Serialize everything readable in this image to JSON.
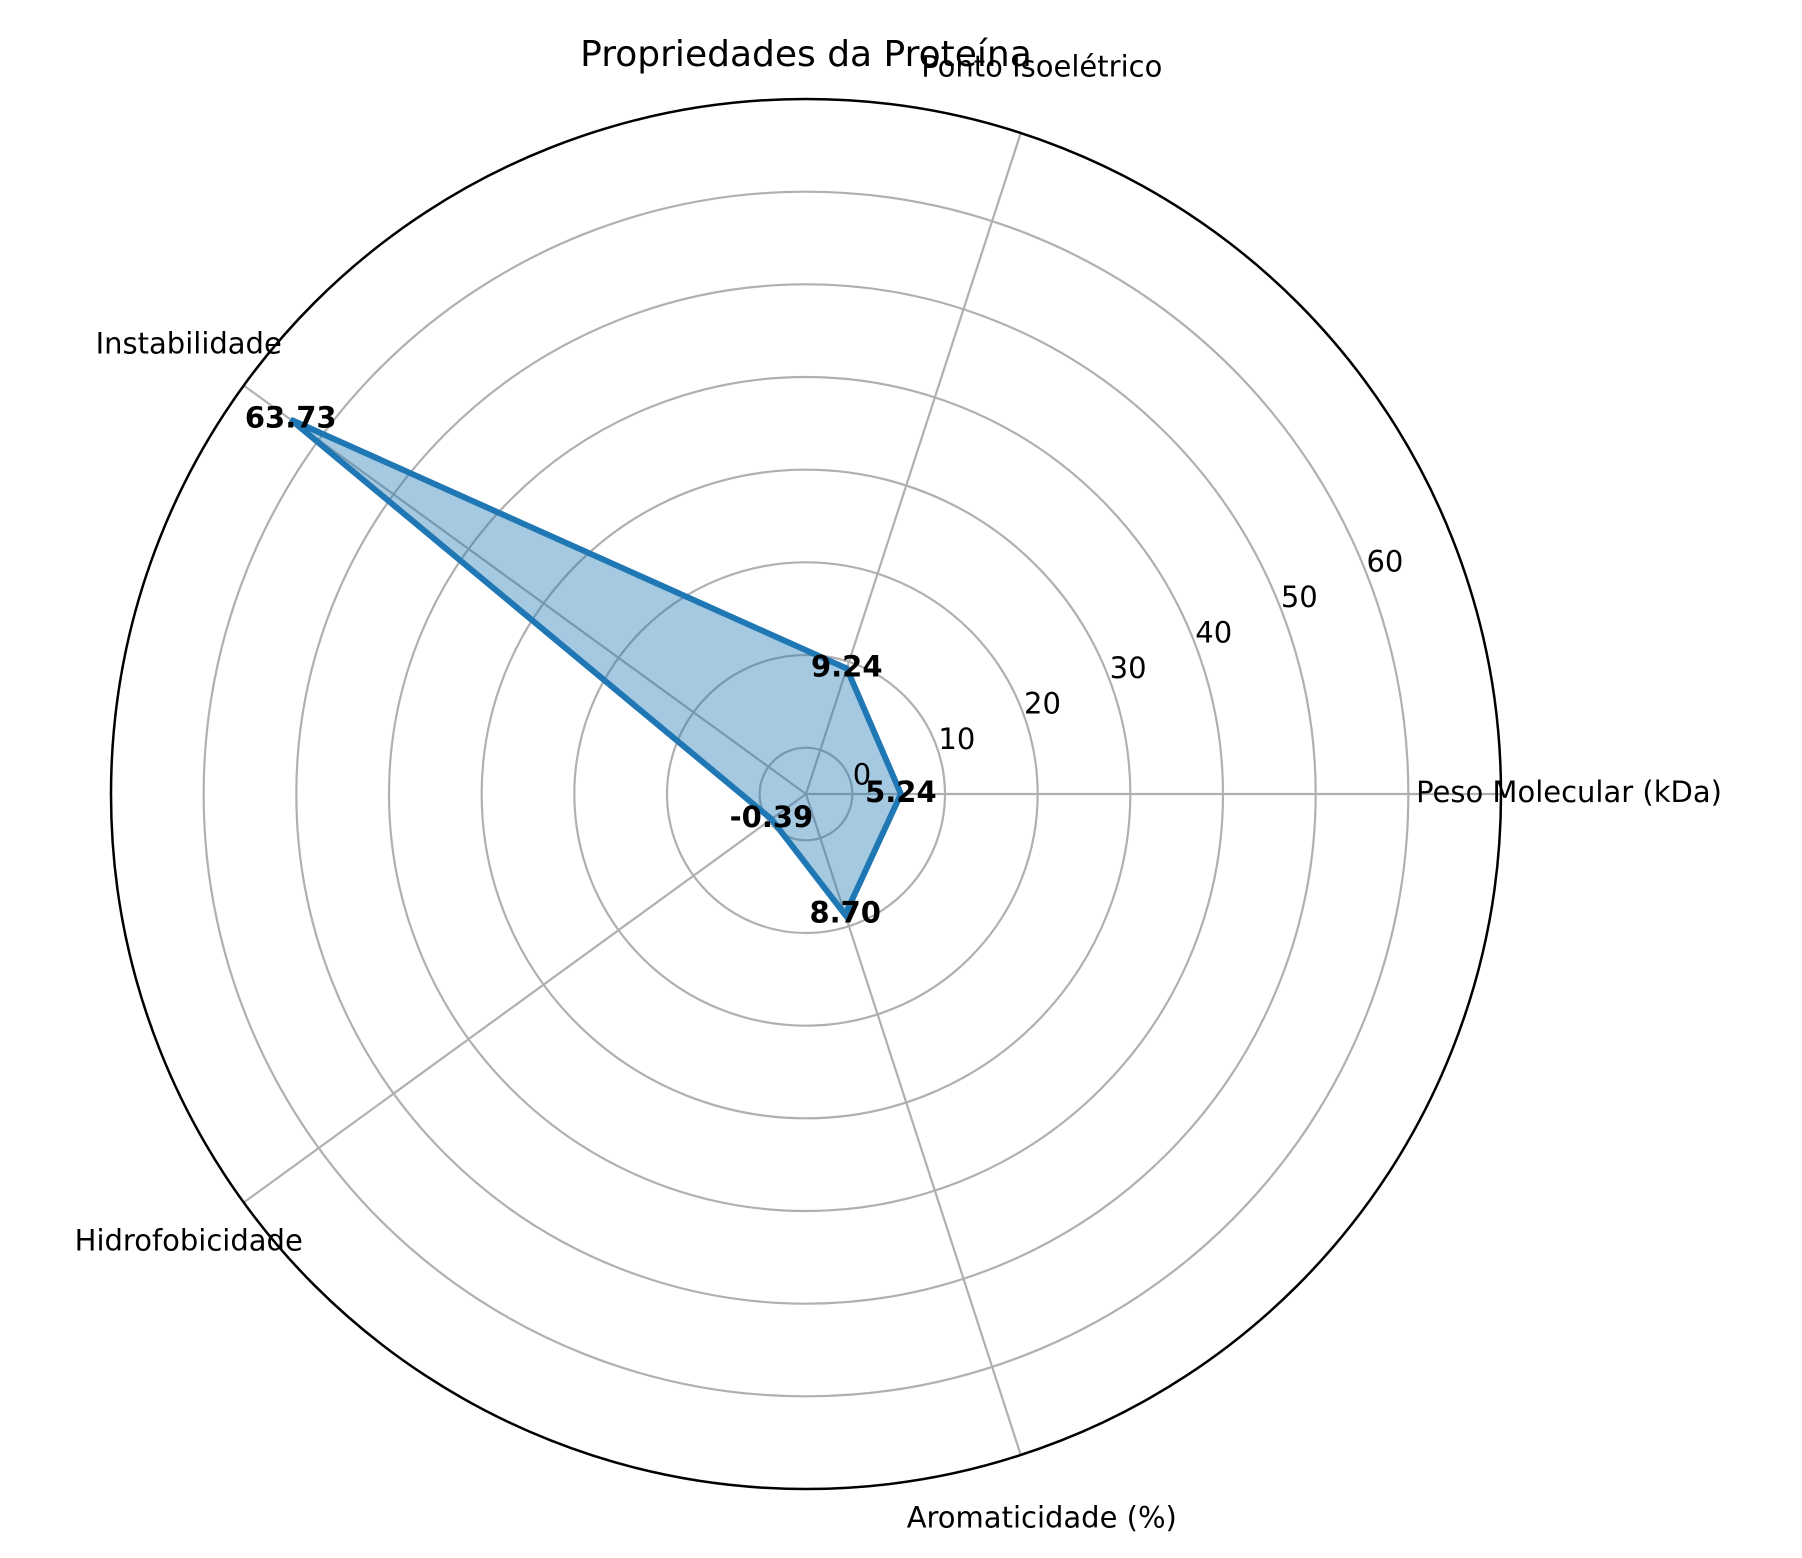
{
  "chart_data": {
    "type": "radar",
    "title": "Propriedades da Proteína",
    "categories": [
      "Peso Molecular (kDa)",
      "Ponto Isoelétrico",
      "Instabilidade",
      "Hidrofobicidade",
      "Aromaticidade (%)"
    ],
    "values": [
      5.24,
      9.24,
      63.73,
      -0.39,
      8.7
    ],
    "value_labels": [
      "5.24",
      "9.24",
      "63.73",
      "-0.39",
      "8.70"
    ],
    "r_ticks": [
      0,
      10,
      20,
      30,
      40,
      50,
      60
    ],
    "r_tick_labels": [
      "0",
      "10",
      "20",
      "30",
      "40",
      "50",
      "60"
    ],
    "rlim": [
      -5,
      70
    ],
    "grid": true,
    "colors": {
      "line": "#1f77b4",
      "fill": "#1f77b4",
      "grid": "#b0b0b0",
      "frame": "#000000"
    }
  }
}
